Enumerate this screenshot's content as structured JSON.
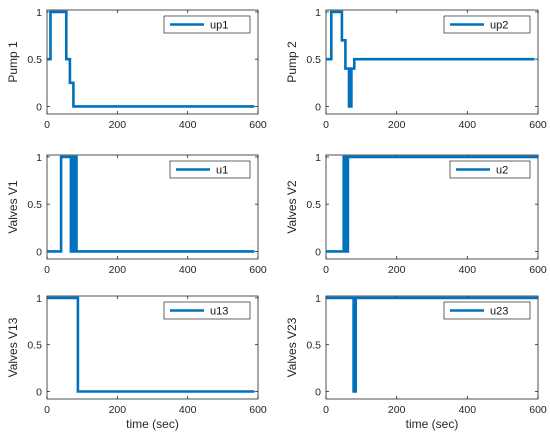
{
  "colors": {
    "series": "#0072BD",
    "axis": "#262626"
  },
  "chart_data": [
    {
      "type": "line",
      "ylabel": "Pump 1",
      "xlabel": "",
      "legend": "top-right",
      "xlim": [
        0,
        600
      ],
      "ylim": [
        -0.08,
        1.02
      ],
      "xticks": [
        "0",
        "200",
        "400",
        "600"
      ],
      "yticks": [
        "0",
        "0.5",
        "1"
      ],
      "series": [
        {
          "name": "up1",
          "x": [
            0,
            10,
            10,
            55,
            55,
            65,
            65,
            75,
            75,
            590
          ],
          "y": [
            0.5,
            0.5,
            1,
            1,
            0.5,
            0.5,
            0.25,
            0.25,
            0,
            0
          ]
        }
      ]
    },
    {
      "type": "line",
      "ylabel": "Pump 2",
      "xlabel": "",
      "legend": "top-right",
      "xlim": [
        0,
        600
      ],
      "ylim": [
        -0.08,
        1.02
      ],
      "xticks": [
        "0",
        "200",
        "400",
        "600"
      ],
      "yticks": [
        "0",
        "0.5",
        "1"
      ],
      "series": [
        {
          "name": "up2",
          "x": [
            0,
            15,
            15,
            45,
            45,
            55,
            55,
            65,
            65,
            72,
            72,
            80,
            80,
            590
          ],
          "y": [
            0.5,
            0.5,
            1,
            1,
            0.7,
            0.7,
            0.4,
            0.4,
            0,
            0,
            0.4,
            0.4,
            0.5,
            0.5
          ]
        }
      ]
    },
    {
      "type": "line",
      "ylabel": "Valves V1",
      "xlabel": "",
      "legend": "top-right",
      "xlim": [
        0,
        600
      ],
      "ylim": [
        -0.08,
        1.02
      ],
      "xticks": [
        "0",
        "200",
        "400",
        "600"
      ],
      "yticks": [
        "0",
        "0.5",
        "1"
      ],
      "series": [
        {
          "name": "u1",
          "x": [
            0,
            40,
            40,
            68,
            68,
            72,
            72,
            76,
            76,
            80,
            80,
            84,
            84,
            590
          ],
          "y": [
            0,
            0,
            1,
            1,
            0,
            0,
            1,
            1,
            0,
            0,
            1,
            1,
            0,
            0
          ]
        }
      ]
    },
    {
      "type": "line",
      "ylabel": "Valves V2",
      "xlabel": "",
      "legend": "top-right",
      "xlim": [
        0,
        600
      ],
      "ylim": [
        -0.08,
        1.02
      ],
      "xticks": [
        "0",
        "200",
        "400",
        "600"
      ],
      "yticks": [
        "0",
        "0.5",
        "1"
      ],
      "series": [
        {
          "name": "u2",
          "x": [
            0,
            50,
            50,
            55,
            55,
            62,
            62,
            88,
            88,
            600
          ],
          "y": [
            0,
            0,
            1,
            1,
            0,
            0,
            1,
            1,
            1,
            1
          ]
        }
      ]
    },
    {
      "type": "line",
      "ylabel": "Valves V13",
      "xlabel": "time (sec)",
      "legend": "top-right",
      "xlim": [
        0,
        600
      ],
      "ylim": [
        -0.08,
        1.02
      ],
      "xticks": [
        "0",
        "200",
        "400",
        "600"
      ],
      "yticks": [
        "0",
        "0.5",
        "1"
      ],
      "series": [
        {
          "name": "u13",
          "x": [
            0,
            88,
            88,
            590
          ],
          "y": [
            1,
            1,
            0,
            0
          ]
        }
      ]
    },
    {
      "type": "line",
      "ylabel": "Valves V23",
      "xlabel": "time (sec)",
      "legend": "top-right",
      "xlim": [
        0,
        600
      ],
      "ylim": [
        -0.08,
        1.02
      ],
      "xticks": [
        "0",
        "200",
        "400",
        "600"
      ],
      "yticks": [
        "0",
        "0.5",
        "1"
      ],
      "series": [
        {
          "name": "u23",
          "x": [
            0,
            78,
            78,
            80,
            80,
            82,
            82,
            84,
            84,
            600
          ],
          "y": [
            1,
            1,
            0,
            0,
            1,
            1,
            0,
            0,
            1,
            1
          ]
        }
      ]
    }
  ]
}
